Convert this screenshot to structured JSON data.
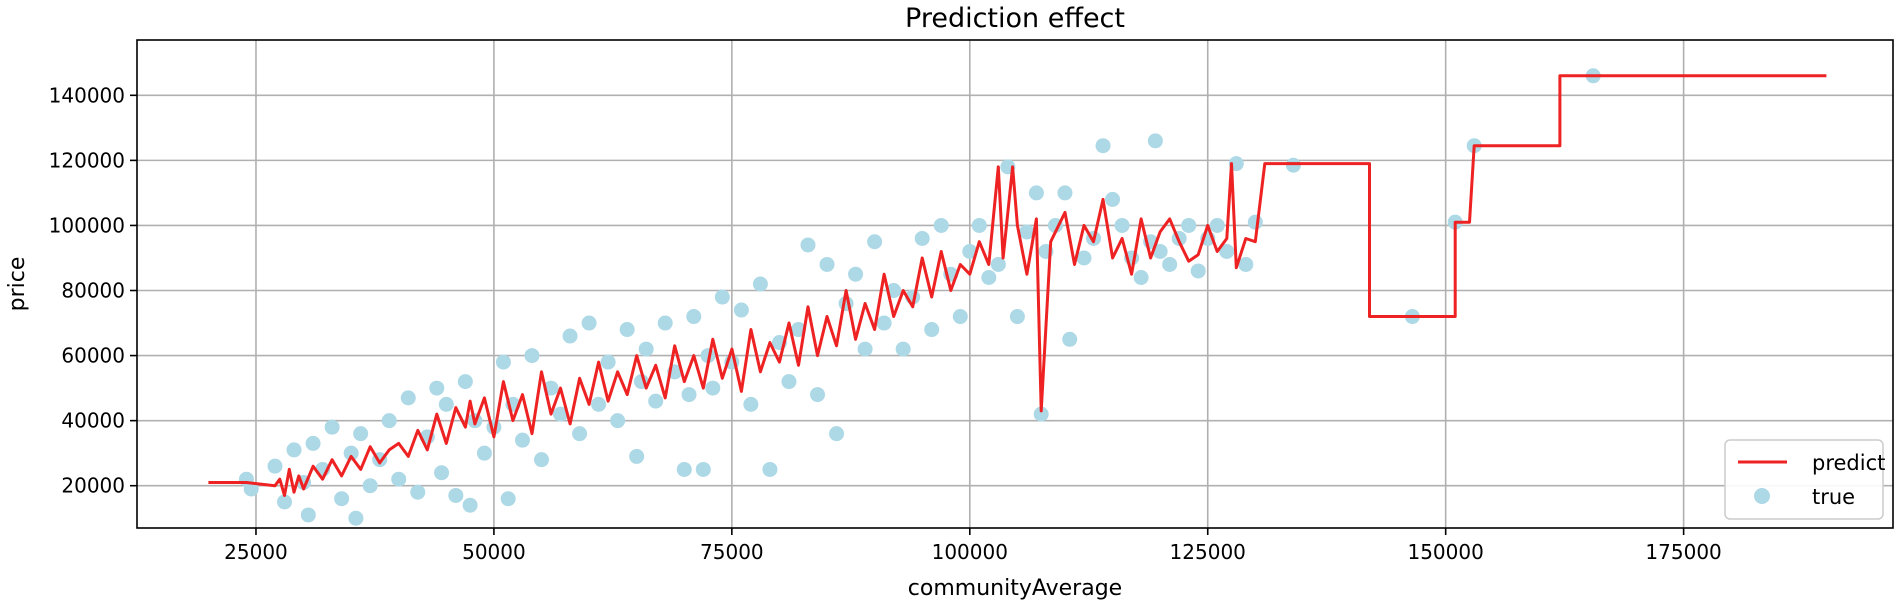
{
  "chart_data": {
    "type": "scatter+line",
    "title": "Prediction effect",
    "xlabel": "communityAverage",
    "ylabel": "price",
    "xlim": [
      12500,
      197000
    ],
    "ylim": [
      7000,
      157000
    ],
    "xticks": [
      25000,
      50000,
      75000,
      100000,
      125000,
      150000,
      175000
    ],
    "xtick_labels": [
      "25000",
      "50000",
      "75000",
      "100000",
      "125000",
      "150000",
      "175000"
    ],
    "yticks": [
      20000,
      40000,
      60000,
      80000,
      100000,
      120000,
      140000
    ],
    "ytick_labels": [
      "20000",
      "40000",
      "60000",
      "80000",
      "100000",
      "120000",
      "140000"
    ],
    "grid": true,
    "legend": {
      "position": "lower-right",
      "entries": [
        "predict",
        "true"
      ]
    },
    "series": [
      {
        "name": "predict",
        "kind": "line",
        "color": "#ee2222",
        "x": [
          20000,
          24000,
          27000,
          27500,
          28000,
          28500,
          29000,
          29500,
          30000,
          31000,
          32000,
          33000,
          34000,
          35000,
          36000,
          37000,
          38000,
          39000,
          40000,
          41000,
          42000,
          43000,
          44000,
          45000,
          46000,
          47000,
          47500,
          48000,
          49000,
          50000,
          51000,
          52000,
          53000,
          54000,
          55000,
          56000,
          57000,
          58000,
          59000,
          60000,
          61000,
          62000,
          63000,
          64000,
          65000,
          66000,
          67000,
          68000,
          69000,
          70000,
          71000,
          72000,
          73000,
          74000,
          75000,
          76000,
          77000,
          78000,
          79000,
          80000,
          81000,
          82000,
          83000,
          84000,
          85000,
          86000,
          87000,
          88000,
          89000,
          90000,
          91000,
          92000,
          93000,
          94000,
          95000,
          96000,
          97000,
          98000,
          99000,
          100000,
          101000,
          102000,
          103000,
          103500,
          104500,
          105000,
          106000,
          107000,
          107500,
          108500,
          110000,
          111000,
          112000,
          113000,
          114000,
          115000,
          116000,
          117000,
          118000,
          119000,
          120000,
          121000,
          122000,
          123000,
          124000,
          125000,
          126000,
          127000,
          127500,
          128000,
          129000,
          130000,
          131000,
          142000,
          142000,
          151000,
          151000,
          152500,
          153000,
          162000,
          162000,
          190000
        ],
        "y": [
          21000,
          21000,
          20000,
          22000,
          17000,
          25000,
          18000,
          23000,
          19000,
          26000,
          22000,
          28000,
          23000,
          29000,
          25000,
          32000,
          27000,
          31000,
          33000,
          29000,
          37000,
          31000,
          42000,
          33000,
          44000,
          38000,
          46000,
          39000,
          47000,
          35000,
          52000,
          40000,
          48000,
          36000,
          55000,
          42000,
          50000,
          39000,
          53000,
          45000,
          58000,
          46000,
          55000,
          48000,
          60000,
          50000,
          57000,
          47000,
          63000,
          52000,
          60000,
          50000,
          65000,
          53000,
          62000,
          49000,
          68000,
          55000,
          64000,
          58000,
          70000,
          57000,
          75000,
          60000,
          72000,
          63000,
          80000,
          65000,
          76000,
          68000,
          85000,
          72000,
          80000,
          75000,
          90000,
          78000,
          92000,
          80000,
          88000,
          85000,
          95000,
          88000,
          118000,
          90000,
          118000,
          100000,
          85000,
          102000,
          43000,
          95000,
          104000,
          88000,
          100000,
          95000,
          108000,
          90000,
          96000,
          85000,
          102000,
          90000,
          98000,
          102000,
          95000,
          89000,
          91000,
          100000,
          92000,
          96000,
          119000,
          87000,
          96000,
          95000,
          119000,
          119000,
          72000,
          72000,
          101000,
          101000,
          124500,
          124500,
          146000,
          146000
        ]
      },
      {
        "name": "true",
        "kind": "scatter",
        "color": "#add8e6",
        "x": [
          24000,
          24500,
          27000,
          28000,
          29000,
          30000,
          30500,
          31000,
          32000,
          33000,
          34000,
          35000,
          35500,
          36000,
          37000,
          38000,
          39000,
          40000,
          41000,
          42000,
          43000,
          44000,
          44500,
          45000,
          46000,
          47000,
          47500,
          48000,
          49000,
          50000,
          51000,
          51500,
          52000,
          53000,
          54000,
          55000,
          56000,
          57000,
          58000,
          59000,
          60000,
          61000,
          62000,
          63000,
          64000,
          65000,
          65500,
          66000,
          67000,
          68000,
          69000,
          70000,
          70500,
          71000,
          72000,
          72500,
          73000,
          74000,
          75000,
          76000,
          77000,
          78000,
          79000,
          80000,
          81000,
          82000,
          83000,
          84000,
          85000,
          86000,
          87000,
          88000,
          89000,
          90000,
          91000,
          92000,
          93000,
          94000,
          95000,
          96000,
          97000,
          98000,
          99000,
          100000,
          101000,
          102000,
          103000,
          104000,
          105000,
          106000,
          107000,
          107500,
          108000,
          109000,
          110000,
          110500,
          112000,
          113000,
          114000,
          115000,
          116000,
          117000,
          118000,
          119000,
          119500,
          120000,
          121000,
          122000,
          123000,
          124000,
          125000,
          126000,
          127000,
          128000,
          129000,
          130000,
          134000,
          146500,
          151000,
          153000,
          165500
        ],
        "y": [
          22000,
          19000,
          26000,
          15000,
          31000,
          21000,
          11000,
          33000,
          25000,
          38000,
          16000,
          30000,
          10000,
          36000,
          20000,
          28000,
          40000,
          22000,
          47000,
          18000,
          35000,
          50000,
          24000,
          45000,
          17000,
          52000,
          14000,
          40000,
          30000,
          38000,
          58000,
          16000,
          45000,
          34000,
          60000,
          28000,
          50000,
          42000,
          66000,
          36000,
          70000,
          45000,
          58000,
          40000,
          68000,
          29000,
          52000,
          62000,
          46000,
          70000,
          55000,
          25000,
          48000,
          72000,
          25000,
          60000,
          50000,
          78000,
          58000,
          74000,
          45000,
          82000,
          25000,
          64000,
          52000,
          68000,
          94000,
          48000,
          88000,
          36000,
          76000,
          85000,
          62000,
          95000,
          70000,
          80000,
          62000,
          78000,
          96000,
          68000,
          100000,
          85000,
          72000,
          92000,
          100000,
          84000,
          88000,
          118000,
          72000,
          98000,
          110000,
          42000,
          92000,
          100000,
          110000,
          65000,
          90000,
          96000,
          124500,
          108000,
          100000,
          90000,
          84000,
          95000,
          126000,
          92000,
          88000,
          96000,
          100000,
          86000,
          96000,
          100000,
          92000,
          119000,
          88000,
          101000,
          118500,
          72000,
          101000,
          124500,
          146000
        ]
      }
    ]
  }
}
